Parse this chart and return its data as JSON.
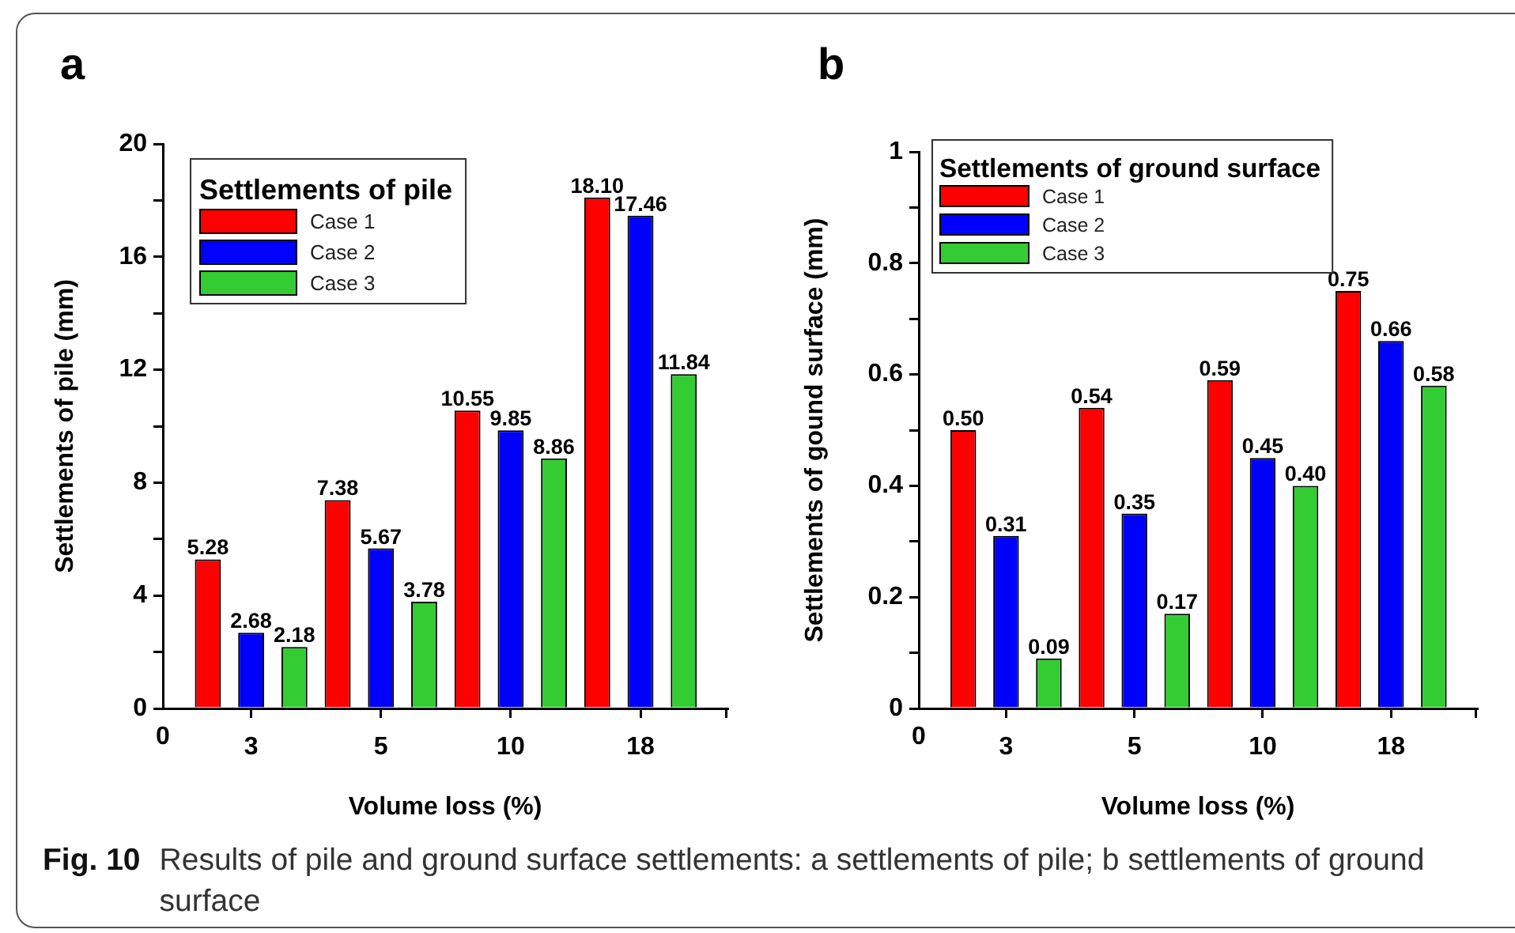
{
  "chart_data": [
    {
      "type": "bar",
      "title": "a",
      "xlabel": "Volume loss (%)",
      "ylabel": "Settlements of pile (mm)",
      "legend_title": "Settlements of pile",
      "legend": "top left",
      "categories": [
        "3",
        "5",
        "10",
        "18"
      ],
      "series": [
        {
          "name": "Case 1",
          "color": "#ff0000",
          "values": [
            5.28,
            7.38,
            10.55,
            18.1
          ],
          "value_labels": [
            "5.28",
            "7.38",
            "10.55",
            "18.10"
          ]
        },
        {
          "name": "Case 2",
          "color": "#0000ff",
          "values": [
            2.68,
            5.67,
            9.85,
            17.46
          ],
          "value_labels": [
            "2.68",
            "5.67",
            "9.85",
            "17.46"
          ]
        },
        {
          "name": "Case 3",
          "color": "#33cc33",
          "values": [
            2.18,
            3.78,
            8.86,
            11.84
          ],
          "value_labels": [
            "2.18",
            "3.78",
            "8.86",
            "11.84"
          ]
        }
      ],
      "ylim": [
        0,
        20
      ],
      "yticks": [
        0,
        {
          "value": 2,
          "label": null
        },
        4,
        {
          "value": 6,
          "label": null
        },
        8,
        {
          "value": 10,
          "label": null
        },
        12,
        {
          "value": 14,
          "label": null
        },
        16,
        {
          "value": 18,
          "label": null
        },
        20
      ],
      "annotations": [
        "0",
        "Fig. 10",
        "Results of pile and ground surface settlements: a settlements of pile; b settlements of ground surface"
      ]
    },
    {
      "type": "bar",
      "title": "b",
      "xlabel": "Volume loss (%)",
      "ylabel": "Settlements of gound surface (mm)",
      "legend_title": "Settlements of ground surface",
      "legend": "top left",
      "categories": [
        "3",
        "5",
        "10",
        "18"
      ],
      "series": [
        {
          "name": "Case 1",
          "color": "#ff0000",
          "values": [
            0.5,
            0.54,
            0.59,
            0.75
          ],
          "value_labels": [
            "0.50",
            "0.54",
            "0.59",
            "0.75"
          ]
        },
        {
          "name": "Case 2",
          "color": "#0000ff",
          "values": [
            0.31,
            0.35,
            0.45,
            0.66
          ],
          "value_labels": [
            "0.31",
            "0.35",
            "0.45",
            "0.66"
          ]
        },
        {
          "name": "Case 3",
          "color": "#33cc33",
          "values": [
            0.09,
            0.17,
            0.4,
            0.58
          ],
          "value_labels": [
            "0.09",
            "0.17",
            "0.40",
            "0.58"
          ]
        }
      ],
      "ylim": [
        0,
        1
      ],
      "yticks": [
        0,
        {
          "value": 0.1,
          "label": null
        },
        0.2,
        {
          "value": 0.3,
          "label": null
        },
        0.4,
        {
          "value": 0.5,
          "label": null
        },
        0.6,
        {
          "value": 0.7,
          "label": null
        },
        0.8,
        {
          "value": 0.9,
          "label": null
        },
        1
      ],
      "annotations": [
        "0"
      ]
    }
  ]
}
